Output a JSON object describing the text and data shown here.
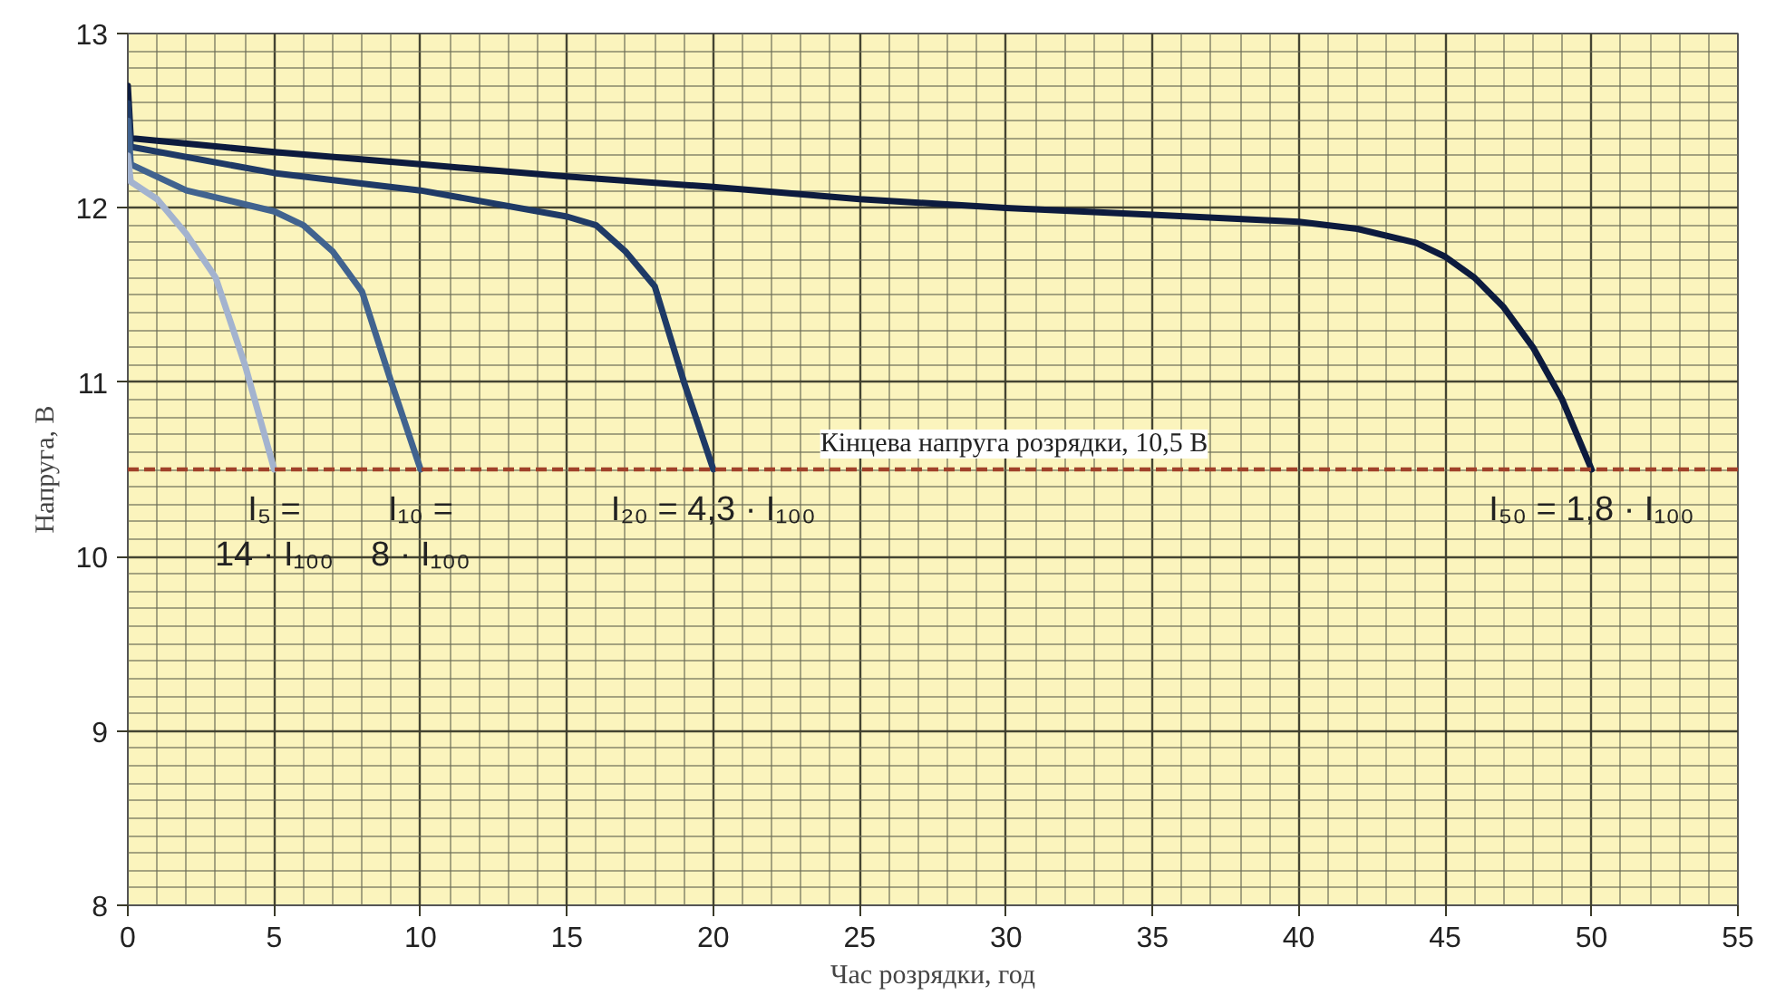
{
  "chart_data": {
    "type": "line",
    "xlabel": "Час розрядки, год",
    "ylabel": "Напруга, В",
    "xlim": [
      0,
      55
    ],
    "xticks": [
      0,
      5,
      10,
      15,
      20,
      25,
      30,
      35,
      40,
      45,
      50,
      55
    ],
    "ylim": [
      8,
      13
    ],
    "yticks": [
      8,
      9,
      10,
      11,
      12,
      13
    ],
    "grid": true,
    "marker": "none",
    "line_style": "solid",
    "series": [
      {
        "color": "#0d1b3e",
        "x": [
          0,
          0.1,
          5,
          10,
          15,
          20,
          25,
          30,
          35,
          40,
          42,
          44,
          45,
          46,
          47,
          48,
          49,
          50
        ],
        "values": [
          12.7,
          12.4,
          12.32,
          12.25,
          12.18,
          12.12,
          12.05,
          12.0,
          11.96,
          11.92,
          11.88,
          11.8,
          11.72,
          11.6,
          11.43,
          11.2,
          10.9,
          10.5
        ]
      },
      {
        "color": "#1f3a66",
        "x": [
          0,
          0.1,
          5,
          10,
          15,
          16,
          17,
          18,
          19,
          20
        ],
        "values": [
          12.6,
          12.35,
          12.2,
          12.1,
          11.95,
          11.9,
          11.75,
          11.55,
          11.0,
          10.5
        ]
      },
      {
        "color": "#41638f",
        "x": [
          0,
          0.1,
          2,
          5,
          6,
          7,
          8,
          9,
          10
        ],
        "values": [
          12.5,
          12.25,
          12.1,
          11.98,
          11.9,
          11.75,
          11.52,
          11.0,
          10.5
        ]
      },
      {
        "color": "#a3b3cf",
        "x": [
          0,
          0.1,
          1,
          2,
          3,
          4,
          5
        ],
        "values": [
          12.3,
          12.15,
          12.05,
          11.85,
          11.6,
          11.1,
          10.5
        ]
      }
    ],
    "ref_lines": [
      {
        "axis": "y",
        "value": 10.5,
        "label": "Кінцева напруга розрядки, 10,5 В",
        "color": "#a0412a",
        "line_style": "dashed"
      }
    ],
    "annotations": [
      {
        "text": "I₅ =\n14 · I₁₀₀",
        "x": 5,
        "y": 10.5
      },
      {
        "text": "I₁₀ =\n8 · I₁₀₀",
        "x": 10,
        "y": 10.5
      },
      {
        "text": "I₂₀ = 4,3 · I₁₀₀",
        "x": 20,
        "y": 10.5
      },
      {
        "text": "I₅₀ = 1,8 · I₁₀₀",
        "x": 50,
        "y": 10.5
      }
    ]
  }
}
